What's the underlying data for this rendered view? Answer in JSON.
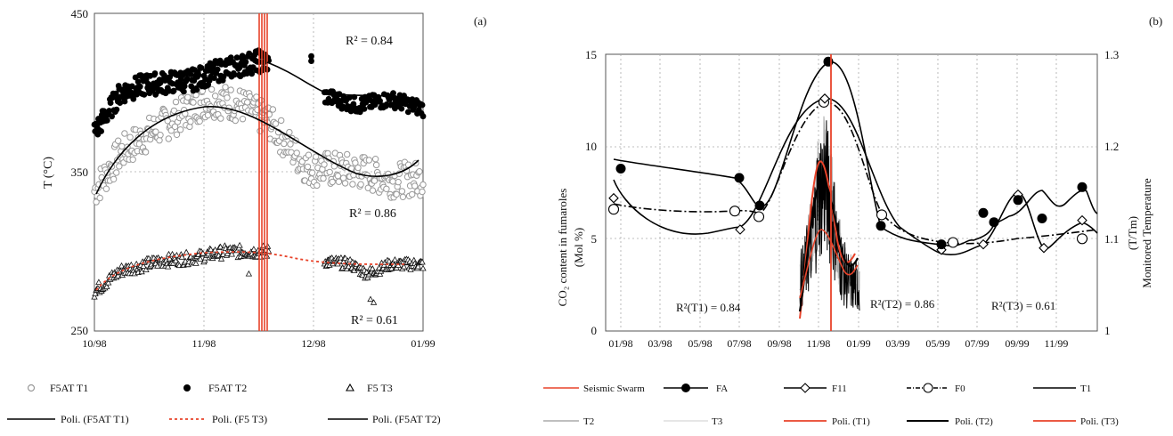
{
  "panel_a": {
    "label": "(a)",
    "ylabel": "T (°C)",
    "annotations": {
      "r2_t2": "R² = 0.84",
      "r2_t1": "R² = 0.86",
      "r2_t3": "R² = 0.61"
    },
    "legend": [
      {
        "label": "F5AT T1",
        "marker": "open-circle",
        "color": "#999999"
      },
      {
        "label": "F5AT T2",
        "marker": "filled-circle",
        "color": "#000000"
      },
      {
        "label": "F5 T3",
        "marker": "open-triangle",
        "color": "#000000"
      },
      {
        "label": "Poli. (F5AT T1)",
        "line": "solid",
        "color": "#000000"
      },
      {
        "label": "Poli. (F5 T3)",
        "line": "dotted",
        "color": "#e8432a"
      },
      {
        "label": "Poli. (F5AT T2)",
        "line": "solid",
        "color": "#000000"
      }
    ]
  },
  "panel_b": {
    "label": "(b)",
    "ylabel_left_line1": "CO₂ content in fumaroles",
    "ylabel_left_line2": "(Mol %)",
    "ylabel_right_line1": "Monitored Temperature",
    "ylabel_right_line2": "(T/Tm)",
    "annotations": {
      "r2_t1": "R²(T1) = 0.84",
      "r2_t2": "R²(T2) = 0.86",
      "r2_t3": "R²(T3) = 0.61"
    },
    "legend": [
      {
        "label": "Seismic Swarm",
        "line": "solid",
        "color": "#e8432a"
      },
      {
        "label": "FA",
        "marker": "filled-circle",
        "color": "#000000"
      },
      {
        "label": "F11",
        "marker": "open-diamond",
        "color": "#000000"
      },
      {
        "label": "F0",
        "marker": "open-circle",
        "line": "dashdot",
        "color": "#000000"
      },
      {
        "label": "T1",
        "line": "solid",
        "color": "#000000"
      },
      {
        "label": "T2",
        "line": "solid",
        "color": "#aaaaaa"
      },
      {
        "label": "T3",
        "line": "solid",
        "color": "#dddddd"
      },
      {
        "label": "Poli. (T1)",
        "line": "solid",
        "color": "#e8432a"
      },
      {
        "label": "Poli. (T2)",
        "line": "solid",
        "color": "#000000"
      },
      {
        "label": "Poli. (T3)",
        "line": "solid",
        "color": "#e8432a"
      }
    ]
  },
  "chart_data": [
    {
      "type": "scatter",
      "panel": "(a)",
      "ylabel": "T (°C)",
      "ylim": [
        250,
        450
      ],
      "yticks": [
        250,
        350,
        450
      ],
      "xticks": [
        "10/98",
        "11/98",
        "12/98",
        "01/99"
      ],
      "grid": "dotted vertical and horizontal",
      "series": [
        {
          "name": "F5AT T2",
          "points": [
            [
              "10/98",
              375
            ],
            [
              "10/98+10d",
              408
            ],
            [
              "10/98+20d",
              410
            ],
            [
              "11/98",
              412
            ],
            [
              "11/98+10d",
              418
            ],
            [
              "11/98+20d",
              418
            ],
            [
              "12/98",
              395
            ],
            [
              "12/98+10d",
              392
            ],
            [
              "12/98+20d",
              396
            ],
            [
              "01/99",
              387
            ]
          ]
        },
        {
          "name": "F5AT T1",
          "points": [
            [
              "10/98",
              340
            ],
            [
              "10/98+10d",
              370
            ],
            [
              "10/98+20d",
              388
            ],
            [
              "11/98",
              392
            ],
            [
              "11/98+10d",
              396
            ],
            [
              "11/98+20d",
              385
            ],
            [
              "12/98",
              352
            ],
            [
              "12/98+10d",
              350
            ],
            [
              "12/98+20d",
              348
            ],
            [
              "01/99",
              346
            ]
          ]
        },
        {
          "name": "F5 T3",
          "points": [
            [
              "10/98",
              273
            ],
            [
              "10/98+10d",
              288
            ],
            [
              "10/98+20d",
              294
            ],
            [
              "11/98",
              296
            ],
            [
              "11/98+10d",
              300
            ],
            [
              "11/98+20d",
              300
            ],
            [
              "12/98+10d",
              292
            ],
            [
              "12/98+20d",
              289
            ],
            [
              "01/99",
              291
            ]
          ]
        },
        {
          "name": "Poli. (F5AT T2)",
          "points": [
            [
              "11/98+20d",
              418
            ],
            [
              "12/98",
              403
            ],
            [
              "12/98+20d",
              397
            ],
            [
              "01/99",
              389
            ]
          ]
        },
        {
          "name": "Poli. (F5AT T1)",
          "points": [
            [
              "10/98",
              333
            ],
            [
              "10/98+20d",
              375
            ],
            [
              "11/98",
              391
            ],
            [
              "11/98+20d",
              380
            ],
            [
              "12/98",
              368
            ],
            [
              "12/98+20d",
              352
            ],
            [
              "01/99",
              358
            ]
          ]
        },
        {
          "name": "Poli. (F5 T3)",
          "points": [
            [
              "10/98",
              278
            ],
            [
              "11/98",
              298
            ],
            [
              "11/98+20d",
              300
            ],
            [
              "12/98+20d",
              292
            ],
            [
              "01/99",
              292
            ]
          ]
        }
      ],
      "annotations": [
        "R² = 0.84",
        "R² = 0.86",
        "R² = 0.61"
      ]
    },
    {
      "type": "line",
      "panel": "(b)",
      "ylabel": "CO₂ content in fumaroles (Mol %)",
      "ylabel_right": "Monitored Temperature (T/Tm)",
      "ylim": [
        0,
        15
      ],
      "yticks": [
        0,
        5,
        10,
        15
      ],
      "ylim_right": [
        1,
        1.3
      ],
      "yticks_right": [
        1,
        1.1,
        1.2,
        1.3
      ],
      "xticks": [
        "01/98",
        "03/98",
        "05/98",
        "07/98",
        "09/98",
        "11/98",
        "01/99",
        "03/99",
        "05/99",
        "07/99",
        "09/99",
        "11/99"
      ],
      "grid": "dotted vertical and horizontal",
      "series": [
        {
          "name": "FA",
          "x": [
            "01/98",
            "07/98",
            "08/98",
            "11/98",
            "02/99",
            "05/99",
            "07/99",
            "08/99",
            "09/99",
            "10/99",
            "12/99"
          ],
          "values": [
            8.8,
            8.3,
            6.8,
            14.6,
            5.7,
            4.7,
            6.4,
            5.9,
            7.1,
            6.1,
            7.8
          ]
        },
        {
          "name": "F11",
          "x": [
            "01/98",
            "07/98",
            "11/98",
            "05/99",
            "07/99",
            "09/99",
            "10/99",
            "12/99"
          ],
          "values": [
            7.2,
            5.5,
            12.6,
            4.4,
            4.7,
            7.4,
            4.5,
            6.0
          ]
        },
        {
          "name": "F0",
          "x": [
            "01/98",
            "07/98",
            "08/98",
            "11/98",
            "02/99",
            "05/99",
            "10/99"
          ],
          "values": [
            6.6,
            6.5,
            6.2,
            12.4,
            6.3,
            4.8,
            5.0
          ]
        }
      ],
      "annotations": [
        "R²(T1) = 0.84",
        "R²(T2) = 0.86",
        "R²(T3) = 0.61"
      ]
    }
  ]
}
